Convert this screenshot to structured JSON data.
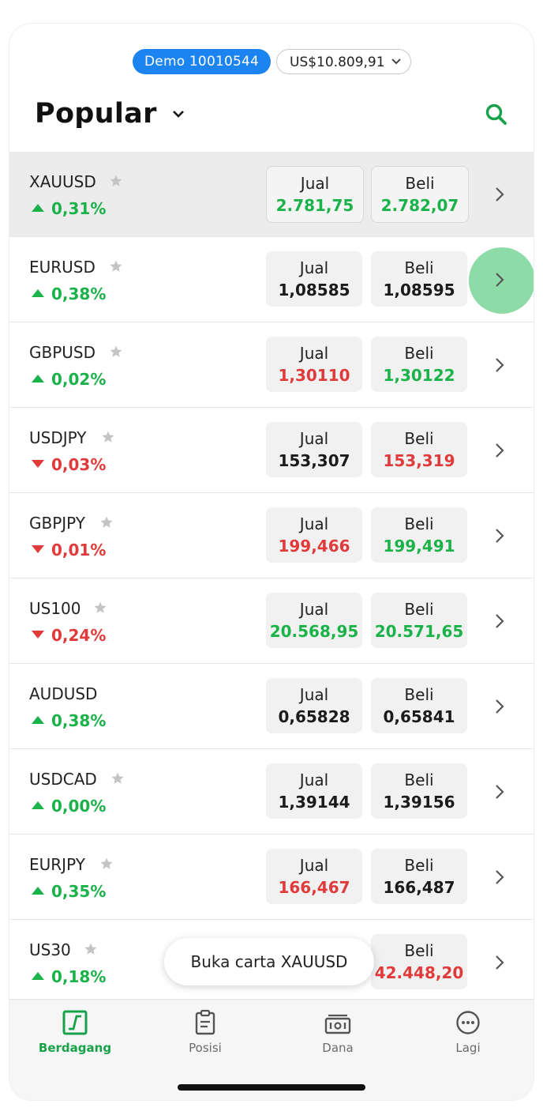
{
  "header": {
    "account_label": "Demo 10010544",
    "balance": "US$10.809,91",
    "title": "Popular"
  },
  "labels": {
    "sell": "Jual",
    "buy": "Beli"
  },
  "instruments": [
    {
      "symbol": "XAUUSD",
      "starred": true,
      "direction": "up",
      "change": "0,31%",
      "sell": "2.781,75",
      "sell_color": "up",
      "buy": "2.782,07",
      "buy_color": "up"
    },
    {
      "symbol": "EURUSD",
      "starred": true,
      "direction": "up",
      "change": "0,38%",
      "sell": "1,08585",
      "sell_color": "neutral",
      "buy": "1,08595",
      "buy_color": "neutral"
    },
    {
      "symbol": "GBPUSD",
      "starred": true,
      "direction": "up",
      "change": "0,02%",
      "sell": "1,30110",
      "sell_color": "down",
      "buy": "1,30122",
      "buy_color": "up"
    },
    {
      "symbol": "USDJPY",
      "starred": true,
      "direction": "down",
      "change": "0,03%",
      "sell": "153,307",
      "sell_color": "neutral",
      "buy": "153,319",
      "buy_color": "down"
    },
    {
      "symbol": "GBPJPY",
      "starred": true,
      "direction": "down",
      "change": "0,01%",
      "sell": "199,466",
      "sell_color": "down",
      "buy": "199,491",
      "buy_color": "up"
    },
    {
      "symbol": "US100",
      "starred": true,
      "direction": "down",
      "change": "0,24%",
      "sell": "20.568,95",
      "sell_color": "up",
      "buy": "20.571,65",
      "buy_color": "up"
    },
    {
      "symbol": "AUDUSD",
      "starred": false,
      "direction": "up",
      "change": "0,38%",
      "sell": "0,65828",
      "sell_color": "neutral",
      "buy": "0,65841",
      "buy_color": "neutral"
    },
    {
      "symbol": "USDCAD",
      "starred": true,
      "direction": "up",
      "change": "0,00%",
      "sell": "1,39144",
      "sell_color": "neutral",
      "buy": "1,39156",
      "buy_color": "neutral"
    },
    {
      "symbol": "EURJPY",
      "starred": true,
      "direction": "up",
      "change": "0,35%",
      "sell": "166,467",
      "sell_color": "down",
      "buy": "166,487",
      "buy_color": "neutral"
    },
    {
      "symbol": "US30",
      "starred": true,
      "direction": "up",
      "change": "0,18%",
      "sell": "",
      "sell_color": "down",
      "buy": "42.448,20",
      "buy_color": "down"
    }
  ],
  "toast": "Buka carta XAUUSD",
  "tabs": [
    {
      "label": "Berdagang",
      "icon": "trade-chart-icon",
      "active": true
    },
    {
      "label": "Posisi",
      "icon": "clipboard-icon",
      "active": false
    },
    {
      "label": "Dana",
      "icon": "cash-icon",
      "active": false
    },
    {
      "label": "Lagi",
      "icon": "more-dots-icon",
      "active": false
    }
  ],
  "colors": {
    "up": "#1bb24a",
    "down": "#e03a3a",
    "accent": "#1b84f0",
    "active_tab": "#17a24a"
  }
}
